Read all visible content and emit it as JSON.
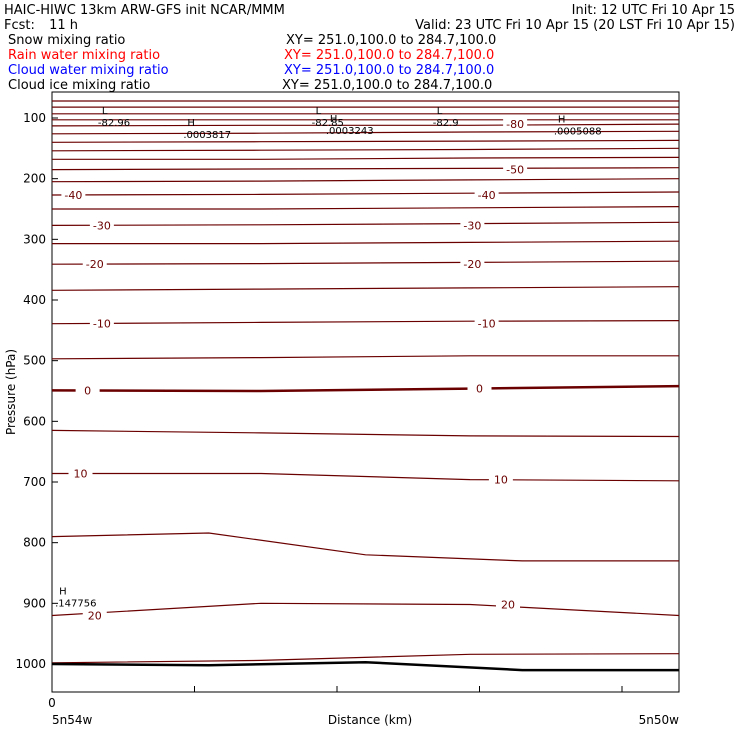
{
  "header": {
    "title": "HAIC-HIWC 13km ARW-GFS init   NCAR/MMM",
    "init": "Init: 12 UTC Fri 10 Apr 15",
    "fcst_label": "Fcst:",
    "fcst_value": "11 h",
    "valid": "Valid: 23 UTC Fri 10 Apr 15 (20 LST Fri 10 Apr 15)"
  },
  "fields": [
    {
      "name": "Snow mixing ratio",
      "xy": "XY= 251.0,100.0 to 284.7,100.0",
      "color": "#000000"
    },
    {
      "name": "Rain water mixing ratio",
      "xy": "XY= 251.0,100.0 to 284.7,100.0",
      "color": "#ff0000"
    },
    {
      "name": "Cloud water mixing ratio",
      "xy": "XY= 251.0,100.0 to 284.7,100.0",
      "color": "#0000ff"
    },
    {
      "name": "Cloud ice mixing ratio",
      "xy": "XY= 251.0,100.0 to 284.7,100.0",
      "color": "#000000"
    }
  ],
  "chart_data": {
    "type": "line",
    "xlabel": "Distance (km)",
    "ylabel": "Pressure (hPa)",
    "y_ticks": [
      100,
      200,
      300,
      400,
      500,
      600,
      700,
      800,
      900,
      1000
    ],
    "y_range": [
      1050,
      70
    ],
    "x_range": [
      0,
      4.4
    ],
    "x_ticks": [
      0,
      1,
      2,
      3,
      4
    ],
    "x_tick_labels": [
      {
        "x": 0,
        "label": "0"
      }
    ],
    "x_bottom_labels": {
      "left": "5n54w",
      "right": "5n50w"
    },
    "contour_color": "#6b0000",
    "contours": [
      {
        "p": [
          72,
          72,
          72,
          72
        ]
      },
      {
        "p": [
          82,
          82,
          82,
          82
        ]
      },
      {
        "p": [
          93,
          93,
          93,
          93
        ]
      },
      {
        "p": [
          103,
          103,
          103,
          103
        ]
      },
      {
        "p": [
          113,
          112,
          112,
          110
        ]
      },
      {
        "p": [
          126,
          125,
          123,
          122
        ]
      },
      {
        "p": [
          140,
          139,
          138,
          137
        ]
      },
      {
        "p": [
          154,
          153,
          152,
          150
        ]
      },
      {
        "p": [
          168,
          168,
          166,
          165
        ]
      },
      {
        "p": [
          185,
          184,
          183,
          182
        ]
      },
      {
        "p": [
          205,
          204,
          202,
          200
        ]
      },
      {
        "p": [
          227,
          226,
          224,
          222
        ]
      },
      {
        "p": [
          250,
          250,
          248,
          246
        ]
      },
      {
        "p": [
          277,
          276,
          274,
          272
        ]
      },
      {
        "p": [
          307,
          307,
          305,
          303
        ]
      },
      {
        "p": [
          341,
          340,
          338,
          336
        ]
      },
      {
        "p": [
          384,
          382,
          380,
          378
        ]
      },
      {
        "p": [
          439,
          437,
          435,
          434
        ]
      },
      {
        "p": [
          497,
          495,
          492,
          492
        ]
      },
      {
        "p": [
          549,
          550,
          546,
          542
        ],
        "bold": true
      },
      {
        "p": [
          615,
          619,
          624,
          625
        ]
      },
      {
        "p": [
          686,
          686,
          696,
          698
        ]
      },
      {
        "p": [
          790,
          784,
          820,
          830,
          830
        ]
      },
      {
        "p": [
          920,
          900,
          902,
          920
        ]
      },
      {
        "p": [
          998,
          994,
          984,
          983
        ]
      }
    ],
    "contour_labels": [
      {
        "text": "-40",
        "x": 0.15,
        "p": 227
      },
      {
        "text": "-30",
        "x": 0.35,
        "p": 277
      },
      {
        "text": "-20",
        "x": 0.3,
        "p": 341
      },
      {
        "text": "-10",
        "x": 0.35,
        "p": 439
      },
      {
        "text": "0",
        "x": 0.25,
        "p": 549
      },
      {
        "text": "10",
        "x": 0.2,
        "p": 686
      },
      {
        "text": "20",
        "x": 0.3,
        "p": 920
      },
      {
        "text": "-80",
        "x": 3.25,
        "p": 110
      },
      {
        "text": "-50",
        "x": 3.25,
        "p": 185
      },
      {
        "text": "-40",
        "x": 3.05,
        "p": 227
      },
      {
        "text": "-30",
        "x": 2.95,
        "p": 277
      },
      {
        "text": "-20",
        "x": 2.95,
        "p": 341
      },
      {
        "text": "-10",
        "x": 3.05,
        "p": 439
      },
      {
        "text": "0",
        "x": 3.0,
        "p": 546
      },
      {
        "text": "10",
        "x": 3.15,
        "p": 696
      },
      {
        "text": "20",
        "x": 3.2,
        "p": 902
      }
    ],
    "extrema": [
      {
        "kind": "L",
        "value": "-82.96",
        "x": 0.35,
        "p": 100,
        "color": "#6b0000"
      },
      {
        "kind": "L",
        "value": "-82.85",
        "x": 1.85,
        "p": 100,
        "color": "#6b0000"
      },
      {
        "kind": "L",
        "value": "-82.9",
        "x": 2.7,
        "p": 100,
        "color": "#6b0000"
      },
      {
        "kind": "H",
        "value": ".0003817",
        "x": 0.95,
        "p": 120,
        "color": "#000000"
      },
      {
        "kind": "H",
        "value": ".0003243",
        "x": 1.95,
        "p": 113,
        "color": "#000000"
      },
      {
        "kind": "H",
        "value": ".0005088",
        "x": 3.55,
        "p": 114,
        "color": "#000000"
      },
      {
        "kind": "H",
        "value": ".147756",
        "x": 0.05,
        "p": 892,
        "color": "#0000cc"
      }
    ],
    "surface": {
      "p": [
        1000,
        1002,
        997,
        1010,
        1010
      ]
    }
  }
}
